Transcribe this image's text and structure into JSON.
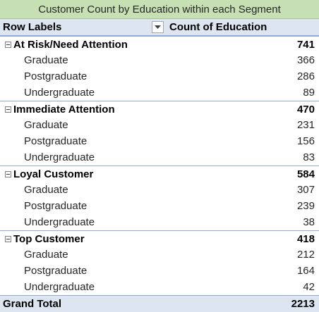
{
  "title": "Customer Count by Education within each Segment",
  "header": {
    "row_labels": "Row Labels",
    "value_label": "Count of Education"
  },
  "groups": [
    {
      "name": "At Risk/Need Attention",
      "total": "741",
      "items": [
        {
          "label": "Graduate",
          "value": "366"
        },
        {
          "label": "Postgraduate",
          "value": "286"
        },
        {
          "label": "Undergraduate",
          "value": "89"
        }
      ]
    },
    {
      "name": "Immediate Attention",
      "total": "470",
      "items": [
        {
          "label": "Graduate",
          "value": "231"
        },
        {
          "label": "Postgraduate",
          "value": "156"
        },
        {
          "label": "Undergraduate",
          "value": "83"
        }
      ]
    },
    {
      "name": "Loyal Customer",
      "total": "584",
      "items": [
        {
          "label": "Graduate",
          "value": "307"
        },
        {
          "label": "Postgraduate",
          "value": "239"
        },
        {
          "label": "Undergraduate",
          "value": "38"
        }
      ]
    },
    {
      "name": "Top Customer",
      "total": "418",
      "items": [
        {
          "label": "Graduate",
          "value": "212"
        },
        {
          "label": "Postgraduate",
          "value": "164"
        },
        {
          "label": "Undergraduate",
          "value": "42"
        }
      ]
    }
  ],
  "grand_total": {
    "label": "Grand Total",
    "value": "2213"
  },
  "colors": {
    "title_bg": "#c6e0b4",
    "header_bg": "#dde5f1",
    "border": "#8ea9db"
  },
  "icons": {
    "filter": "filter-dropdown-icon",
    "collapse": "collapse-minus-icon"
  }
}
